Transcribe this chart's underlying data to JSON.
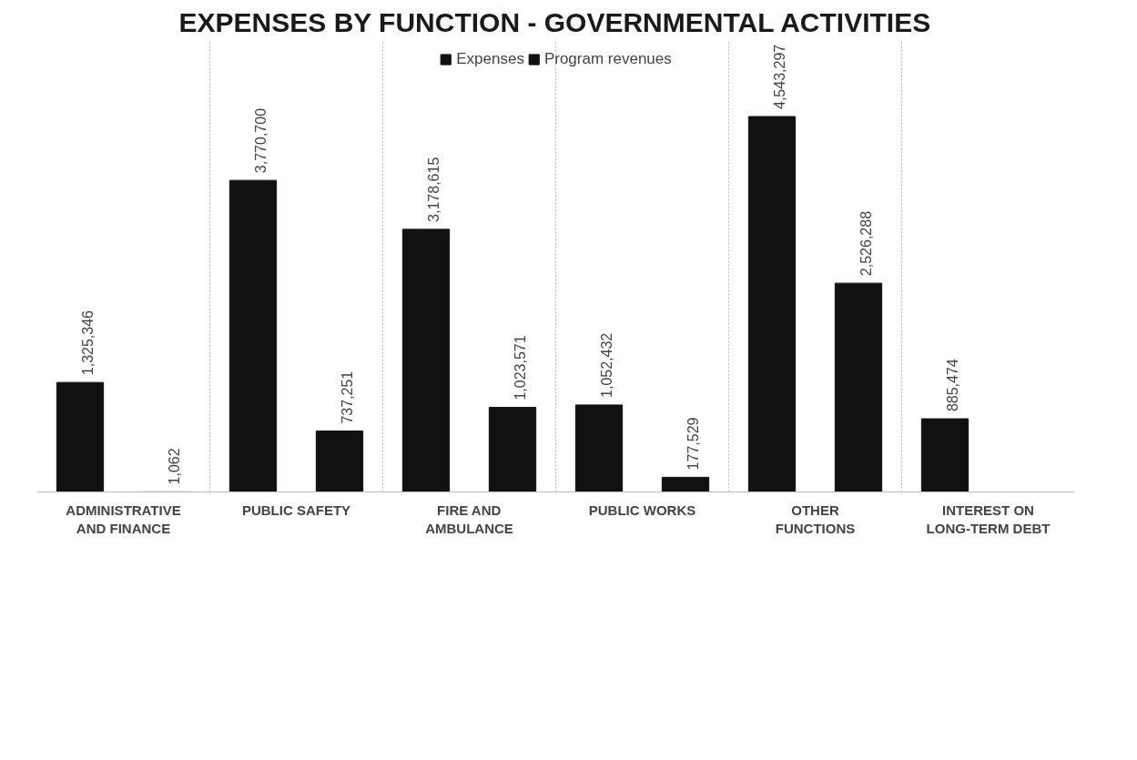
{
  "chart_data": {
    "type": "bar",
    "title": "EXPENSES BY FUNCTION - GOVERNMENTAL ACTIVITIES",
    "categories": [
      "ADMINISTRATIVE AND FINANCE",
      "PUBLIC SAFETY",
      "FIRE AND AMBULANCE",
      "PUBLIC WORKS",
      "OTHER FUNCTIONS",
      "INTEREST ON LONG-TERM DEBT"
    ],
    "series": [
      {
        "name": "Expenses",
        "color": "#111111",
        "values": [
          1325346,
          3770700,
          3178615,
          1052432,
          4543297,
          885474
        ],
        "value_labels": [
          "1,325,346",
          "3,770,700",
          "3,178,615",
          "1,052,432",
          "4,543,297",
          "885,474"
        ]
      },
      {
        "name": "Program revenues",
        "color": "#111111",
        "values": [
          1062,
          737251,
          1023571,
          177529,
          2526288,
          null
        ],
        "value_labels": [
          "1,062",
          "737,251",
          "1,023,571",
          "177,529",
          "2,526,288",
          null
        ]
      }
    ],
    "legend": "top",
    "grid": "x"
  }
}
